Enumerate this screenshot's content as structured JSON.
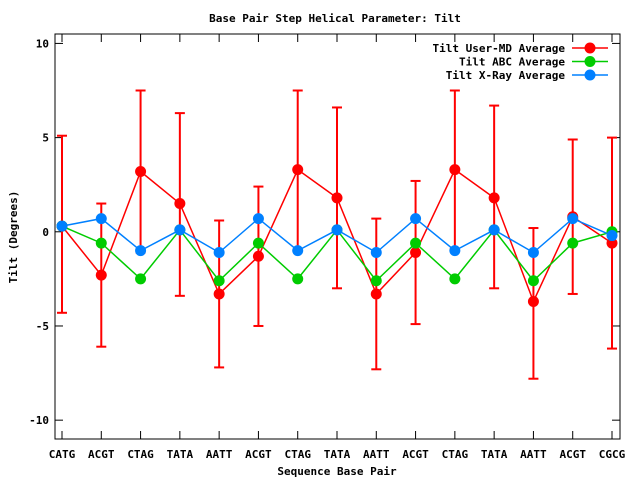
{
  "chart_data": {
    "type": "line",
    "title": "Base Pair Step Helical Parameter: Tilt",
    "xlabel": "Sequence Base Pair",
    "ylabel": "Tilt (Degrees)",
    "categories": [
      "CATG",
      "ACGT",
      "CTAG",
      "TATA",
      "AATT",
      "ACGT",
      "CTAG",
      "TATA",
      "AATT",
      "ACGT",
      "CTAG",
      "TATA",
      "AATT",
      "ACGT",
      "CGCG"
    ],
    "ylim": [
      -11,
      10.5
    ],
    "yticks": [
      -10,
      -5,
      0,
      5,
      10
    ],
    "grid": false,
    "legend_position": "top-right",
    "series": [
      {
        "name": "Tilt User-MD Average",
        "color": "#ff0000",
        "values": [
          0.3,
          -2.3,
          3.2,
          1.5,
          -3.3,
          -1.3,
          3.3,
          1.8,
          -3.3,
          -1.1,
          3.3,
          1.8,
          -3.7,
          0.8,
          -0.6
        ],
        "err_low": [
          -4.3,
          -6.1,
          -1.1,
          -3.4,
          -7.2,
          -5.0,
          -1.0,
          -3.0,
          -7.3,
          -4.9,
          -0.9,
          -3.0,
          -7.8,
          -3.3,
          -6.2
        ],
        "err_high": [
          5.1,
          1.5,
          7.5,
          6.3,
          0.6,
          2.4,
          7.5,
          6.6,
          0.7,
          2.7,
          7.5,
          6.7,
          0.2,
          4.9,
          5.0
        ]
      },
      {
        "name": "Tilt ABC Average",
        "color": "#00cc00",
        "values": [
          0.3,
          -0.6,
          -2.5,
          0.1,
          -2.6,
          -0.6,
          -2.5,
          0.1,
          -2.6,
          -0.6,
          -2.5,
          0.1,
          -2.6,
          -0.6,
          0.0
        ]
      },
      {
        "name": "Tilt X-Ray Average",
        "color": "#0080ff",
        "values": [
          0.3,
          0.7,
          -1.0,
          0.1,
          -1.1,
          0.7,
          -1.0,
          0.1,
          -1.1,
          0.7,
          -1.0,
          0.1,
          -1.1,
          0.7,
          -0.2
        ]
      }
    ]
  }
}
